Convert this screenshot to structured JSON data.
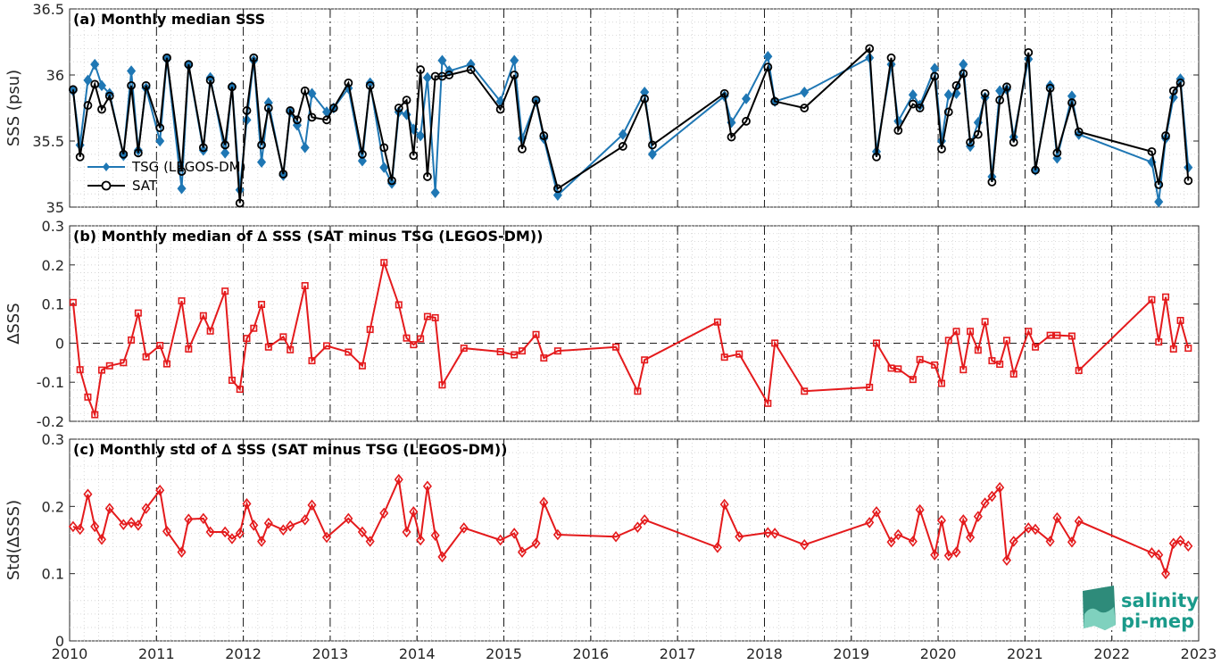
{
  "chart_data": [
    {
      "type": "line",
      "title": "(a) Monthly median SSS",
      "ylabel": "SSS (psu)",
      "ylim": [
        35,
        36.5
      ],
      "yticks": [
        35,
        35.5,
        36,
        36.5
      ],
      "ytick_labels": [
        "35",
        "35.5",
        "36",
        "36.5"
      ],
      "xlim": [
        2010,
        2023
      ],
      "grid": "on",
      "legend": {
        "placement": "lower-left",
        "entries": [
          "TSG (LEGOS-DM)",
          "SAT"
        ]
      },
      "series": [
        {
          "name": "TSG (LEGOS-DM)",
          "color": "#1f77b4",
          "marker": "diamond",
          "x": [
            2010.04,
            2010.12,
            2010.21,
            2010.29,
            2010.37,
            2010.46,
            2010.62,
            2010.71,
            2010.79,
            2010.88,
            2011.04,
            2011.12,
            2011.29,
            2011.37,
            2011.54,
            2011.62,
            2011.79,
            2011.87,
            2011.96,
            2012.04,
            2012.12,
            2012.21,
            2012.29,
            2012.46,
            2012.54,
            2012.62,
            2012.71,
            2012.79,
            2012.96,
            2013.04,
            2013.21,
            2013.37,
            2013.46,
            2013.62,
            2013.71,
            2013.79,
            2013.88,
            2013.96,
            2014.04,
            2014.12,
            2014.21,
            2014.29,
            2014.37,
            2014.62,
            2014.96,
            2015.12,
            2015.21,
            2015.37,
            2015.46,
            2015.62,
            2016.37,
            2016.62,
            2016.71,
            2017.54,
            2017.62,
            2017.79,
            2018.04,
            2018.12,
            2018.46,
            2019.21,
            2019.29,
            2019.46,
            2019.54,
            2019.71,
            2019.79,
            2019.96,
            2020.04,
            2020.12,
            2020.21,
            2020.29,
            2020.37,
            2020.46,
            2020.54,
            2020.62,
            2020.71,
            2020.79,
            2020.87,
            2021.04,
            2021.12,
            2021.29,
            2021.37,
            2021.54,
            2021.62,
            2022.46,
            2022.54,
            2022.62,
            2022.71,
            2022.79,
            2022.88
          ],
          "y": [
            35.88,
            35.47,
            35.96,
            36.08,
            35.92,
            35.86,
            35.39,
            36.03,
            35.43,
            35.9,
            35.5,
            36.12,
            35.14,
            36.07,
            35.43,
            35.98,
            35.41,
            35.91,
            35.13,
            35.66,
            36.11,
            35.34,
            35.79,
            35.24,
            35.72,
            35.62,
            35.45,
            35.86,
            35.72,
            35.75,
            35.9,
            35.35,
            35.94,
            35.3,
            35.18,
            35.72,
            35.7,
            35.59,
            35.54,
            35.98,
            35.11,
            36.11,
            36.03,
            36.08,
            35.8,
            36.11,
            35.52,
            35.8,
            35.52,
            35.09,
            35.55,
            35.87,
            35.4,
            35.84,
            35.64,
            35.82,
            36.14,
            35.8,
            35.87,
            36.13,
            35.42,
            36.08,
            35.65,
            35.85,
            35.77,
            36.05,
            35.5,
            35.85,
            35.86,
            36.08,
            35.46,
            35.64,
            35.83,
            35.23,
            35.88,
            35.89,
            35.53,
            36.12,
            35.28,
            35.92,
            35.37,
            35.84,
            35.55,
            35.34,
            35.04,
            35.52,
            35.83,
            35.97,
            35.3
          ],
          "x_note": ""
        },
        {
          "name": "SAT",
          "color": "#000000",
          "marker": "circle",
          "x": [
            2010.04,
            2010.12,
            2010.21,
            2010.29,
            2010.37,
            2010.46,
            2010.62,
            2010.71,
            2010.79,
            2010.88,
            2011.04,
            2011.12,
            2011.29,
            2011.37,
            2011.54,
            2011.62,
            2011.79,
            2011.87,
            2011.96,
            2012.04,
            2012.12,
            2012.21,
            2012.29,
            2012.46,
            2012.54,
            2012.62,
            2012.71,
            2012.79,
            2012.96,
            2013.04,
            2013.21,
            2013.37,
            2013.46,
            2013.62,
            2013.71,
            2013.79,
            2013.88,
            2013.96,
            2014.04,
            2014.12,
            2014.21,
            2014.29,
            2014.37,
            2014.62,
            2014.96,
            2015.12,
            2015.21,
            2015.37,
            2015.46,
            2015.62,
            2016.37,
            2016.62,
            2016.71,
            2017.54,
            2017.62,
            2017.79,
            2018.04,
            2018.12,
            2018.46,
            2019.21,
            2019.29,
            2019.46,
            2019.54,
            2019.71,
            2019.79,
            2019.96,
            2020.04,
            2020.12,
            2020.21,
            2020.29,
            2020.37,
            2020.46,
            2020.54,
            2020.62,
            2020.71,
            2020.79,
            2020.87,
            2021.04,
            2021.12,
            2021.29,
            2021.37,
            2021.54,
            2021.62,
            2022.46,
            2022.54,
            2022.62,
            2022.71,
            2022.79,
            2022.88
          ],
          "y": [
            35.89,
            35.38,
            35.77,
            35.93,
            35.74,
            35.84,
            35.4,
            35.92,
            35.41,
            35.92,
            35.6,
            36.13,
            35.27,
            36.08,
            35.45,
            35.96,
            35.47,
            35.91,
            35.03,
            35.73,
            36.13,
            35.47,
            35.75,
            35.25,
            35.73,
            35.66,
            35.88,
            35.68,
            35.66,
            35.75,
            35.94,
            35.4,
            35.92,
            35.45,
            35.2,
            35.75,
            35.81,
            35.39,
            36.04,
            35.23,
            35.99,
            35.99,
            36.0,
            36.04,
            35.74,
            36.0,
            35.44,
            35.81,
            35.54,
            35.14,
            35.46,
            35.82,
            35.47,
            35.86,
            35.53,
            35.65,
            36.06,
            35.8,
            35.75,
            36.2,
            35.38,
            36.13,
            35.58,
            35.78,
            35.75,
            35.99,
            35.44,
            35.72,
            35.92,
            36.01,
            35.49,
            35.55,
            35.86,
            35.19,
            35.81,
            35.91,
            35.49,
            36.17,
            35.28,
            35.9,
            35.41,
            35.79,
            35.57,
            35.42,
            35.17,
            35.54,
            35.88,
            35.94,
            35.2
          ]
        }
      ]
    },
    {
      "type": "line",
      "title": "(b) Monthly median of ∆ SSS (SAT minus TSG (LEGOS-DM))",
      "ylabel": "∆SSS",
      "ylim": [
        -0.2,
        0.3
      ],
      "yticks": [
        -0.2,
        -0.1,
        0,
        0.1,
        0.2,
        0.3
      ],
      "ytick_labels": [
        "-0.2",
        "-0.1",
        "0",
        "0.1",
        "0.2",
        "0.3"
      ],
      "xlim": [
        2010,
        2023
      ],
      "grid": "on",
      "zero_line": "dashed",
      "series": [
        {
          "color": "#e41a1c",
          "marker": "square",
          "x": [
            2010.04,
            2010.12,
            2010.21,
            2010.29,
            2010.37,
            2010.46,
            2010.62,
            2010.71,
            2010.79,
            2010.88,
            2011.04,
            2011.12,
            2011.29,
            2011.37,
            2011.54,
            2011.62,
            2011.79,
            2011.87,
            2011.96,
            2012.04,
            2012.12,
            2012.21,
            2012.29,
            2012.46,
            2012.54,
            2012.71,
            2012.79,
            2012.96,
            2013.21,
            2013.37,
            2013.46,
            2013.62,
            2013.79,
            2013.88,
            2013.96,
            2014.04,
            2014.12,
            2014.21,
            2014.29,
            2014.54,
            2014.96,
            2015.12,
            2015.21,
            2015.37,
            2015.46,
            2015.62,
            2016.29,
            2016.54,
            2016.62,
            2017.46,
            2017.54,
            2017.71,
            2018.04,
            2018.12,
            2018.46,
            2019.21,
            2019.29,
            2019.46,
            2019.54,
            2019.71,
            2019.79,
            2019.96,
            2020.04,
            2020.12,
            2020.21,
            2020.29,
            2020.37,
            2020.46,
            2020.54,
            2020.62,
            2020.71,
            2020.79,
            2020.87,
            2021.04,
            2021.12,
            2021.29,
            2021.37,
            2021.54,
            2021.62,
            2022.46,
            2022.54,
            2022.62,
            2022.71,
            2022.79,
            2022.88
          ],
          "y": [
            0.104,
            -0.068,
            -0.138,
            -0.183,
            -0.069,
            -0.058,
            -0.05,
            0.008,
            0.077,
            -0.035,
            -0.006,
            -0.053,
            0.108,
            -0.015,
            0.07,
            0.031,
            0.133,
            -0.095,
            -0.118,
            0.012,
            0.038,
            0.099,
            -0.01,
            0.016,
            -0.017,
            0.147,
            -0.045,
            -0.007,
            -0.023,
            -0.058,
            0.035,
            0.206,
            0.098,
            0.013,
            -0.004,
            0.011,
            0.068,
            0.065,
            -0.107,
            -0.013,
            -0.022,
            -0.03,
            -0.02,
            0.022,
            -0.038,
            -0.02,
            -0.01,
            -0.123,
            -0.043,
            0.054,
            -0.036,
            -0.028,
            -0.154,
            0.0,
            -0.123,
            -0.113,
            0.0,
            -0.064,
            -0.066,
            -0.093,
            -0.042,
            -0.056,
            -0.103,
            0.007,
            0.03,
            -0.068,
            0.03,
            -0.018,
            0.055,
            -0.045,
            -0.054,
            0.007,
            -0.079,
            0.03,
            -0.01,
            0.02,
            0.02,
            0.018,
            -0.07,
            0.111,
            0.003,
            0.118,
            -0.015,
            0.058,
            -0.013
          ]
        }
      ]
    },
    {
      "type": "line",
      "title": "(c) Monthly std of ∆ SSS (SAT minus TSG (LEGOS-DM))",
      "ylabel": "Std(∆SSS)",
      "ylim": [
        0,
        0.3
      ],
      "yticks": [
        0,
        0.1,
        0.2,
        0.3
      ],
      "ytick_labels": [
        "0",
        "0.1",
        "0.2",
        "0.3"
      ],
      "xlim": [
        2010,
        2023
      ],
      "xticks": [
        2010,
        2011,
        2012,
        2013,
        2014,
        2015,
        2016,
        2017,
        2018,
        2019,
        2020,
        2021,
        2022,
        2023
      ],
      "xtick_labels": [
        "2010",
        "2011",
        "2012",
        "2013",
        "2014",
        "2015",
        "2016",
        "2017",
        "2018",
        "2019",
        "2020",
        "2021",
        "2022",
        "2023"
      ],
      "grid": "on",
      "series": [
        {
          "color": "#e41a1c",
          "marker": "diamond",
          "x": [
            2010.04,
            2010.12,
            2010.21,
            2010.29,
            2010.37,
            2010.46,
            2010.62,
            2010.71,
            2010.79,
            2010.88,
            2011.04,
            2011.12,
            2011.29,
            2011.37,
            2011.54,
            2011.62,
            2011.79,
            2011.87,
            2011.96,
            2012.04,
            2012.12,
            2012.21,
            2012.29,
            2012.46,
            2012.54,
            2012.71,
            2012.79,
            2012.96,
            2013.21,
            2013.37,
            2013.46,
            2013.62,
            2013.79,
            2013.88,
            2013.96,
            2014.04,
            2014.12,
            2014.21,
            2014.29,
            2014.54,
            2014.96,
            2015.12,
            2015.21,
            2015.37,
            2015.46,
            2015.62,
            2016.29,
            2016.54,
            2016.62,
            2017.46,
            2017.54,
            2017.71,
            2018.04,
            2018.12,
            2018.46,
            2019.21,
            2019.29,
            2019.46,
            2019.54,
            2019.71,
            2019.79,
            2019.96,
            2020.04,
            2020.12,
            2020.21,
            2020.29,
            2020.37,
            2020.46,
            2020.54,
            2020.62,
            2020.71,
            2020.79,
            2020.87,
            2021.04,
            2021.12,
            2021.29,
            2021.37,
            2021.54,
            2021.62,
            2022.46,
            2022.54,
            2022.62,
            2022.71,
            2022.79,
            2022.88
          ],
          "y": [
            0.17,
            0.166,
            0.218,
            0.17,
            0.151,
            0.197,
            0.173,
            0.176,
            0.172,
            0.197,
            0.224,
            0.163,
            0.132,
            0.181,
            0.182,
            0.162,
            0.162,
            0.152,
            0.16,
            0.204,
            0.172,
            0.148,
            0.175,
            0.165,
            0.171,
            0.18,
            0.202,
            0.154,
            0.182,
            0.162,
            0.148,
            0.19,
            0.24,
            0.162,
            0.192,
            0.15,
            0.23,
            0.157,
            0.125,
            0.168,
            0.15,
            0.16,
            0.132,
            0.145,
            0.206,
            0.158,
            0.155,
            0.169,
            0.18,
            0.139,
            0.203,
            0.155,
            0.161,
            0.16,
            0.143,
            0.176,
            0.192,
            0.147,
            0.158,
            0.148,
            0.195,
            0.128,
            0.179,
            0.127,
            0.132,
            0.18,
            0.154,
            0.185,
            0.205,
            0.215,
            0.228,
            0.12,
            0.148,
            0.168,
            0.166,
            0.148,
            0.183,
            0.147,
            0.178,
            0.131,
            0.128,
            0.1,
            0.145,
            0.149,
            0.141
          ]
        }
      ]
    }
  ],
  "logo": {
    "line1": "salinity",
    "line2": "pi-mep",
    "color": "#1a9a8a"
  }
}
